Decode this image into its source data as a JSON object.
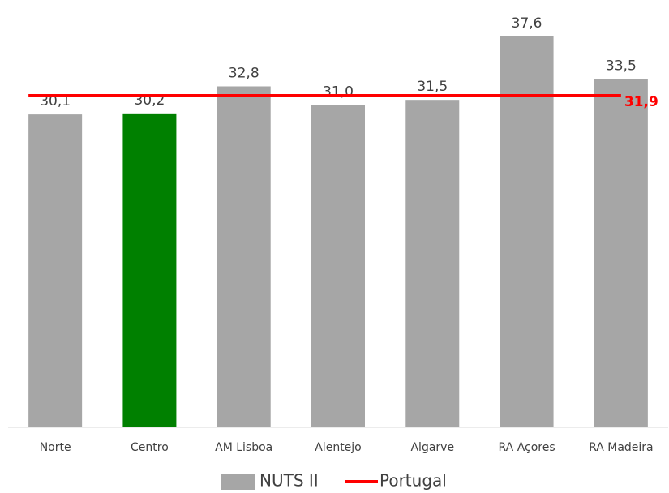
{
  "chart_data": {
    "type": "bar",
    "categories": [
      "Norte",
      "Centro",
      "AM Lisboa",
      "Alentejo",
      "Algarve",
      "RA Açores",
      "RA Madeira"
    ],
    "series": [
      {
        "name": "NUTS II",
        "color": "#a6a6a6",
        "colors": [
          "#a6a6a6",
          "#008000",
          "#a6a6a6",
          "#a6a6a6",
          "#a6a6a6",
          "#a6a6a6",
          "#a6a6a6"
        ],
        "values": [
          30.1,
          30.2,
          32.8,
          31.0,
          31.5,
          37.6,
          33.5
        ],
        "value_labels": [
          "30,1",
          "30,2",
          "32,8",
          "31,0",
          "31,5",
          "37,6",
          "33,5"
        ]
      }
    ],
    "reference_line": {
      "name": "Portugal",
      "color": "#ff0000",
      "value": 31.9,
      "value_label": "31,9"
    },
    "ylim": [
      0,
      40
    ],
    "legend": "bottom"
  }
}
